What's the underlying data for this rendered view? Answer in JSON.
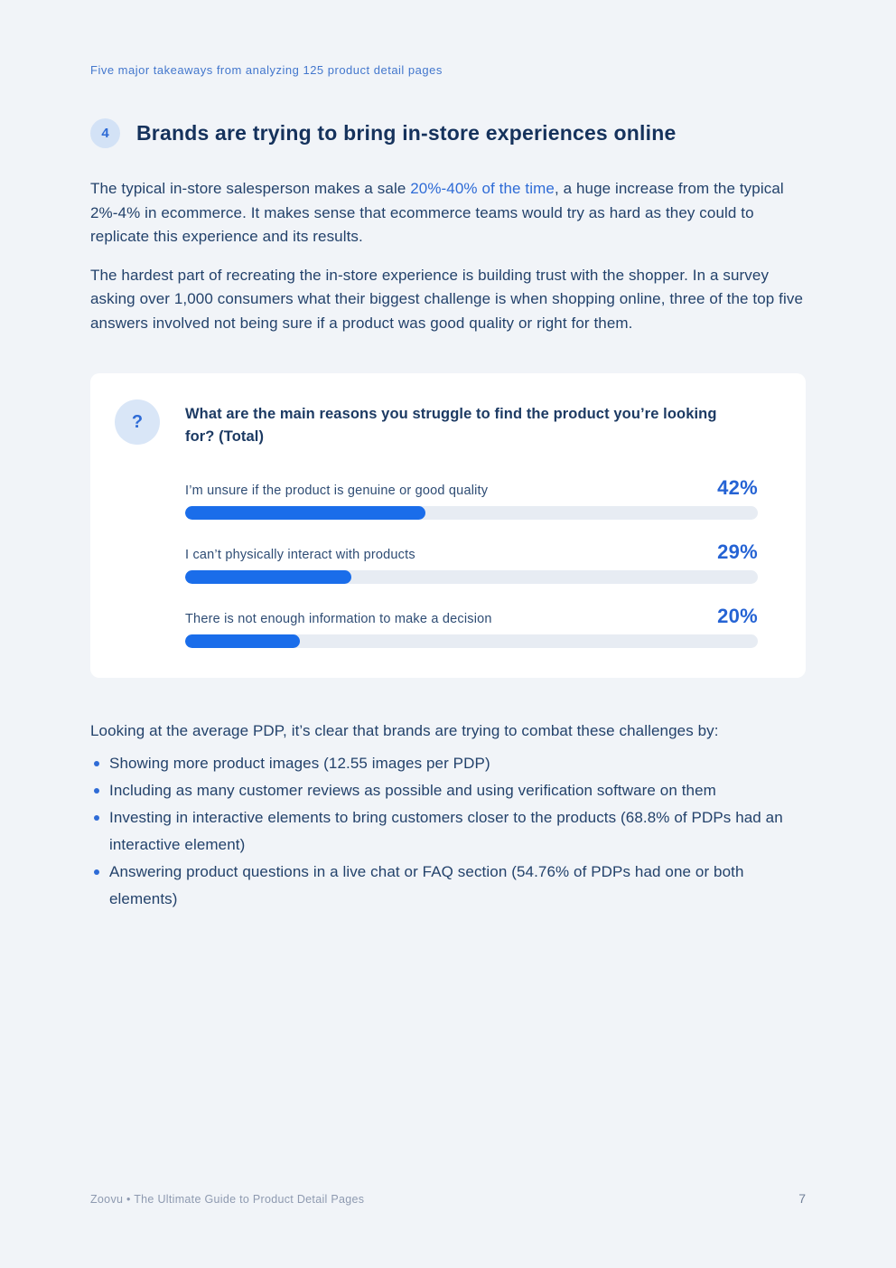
{
  "page": {
    "eyebrow": "Five major takeaways from analyzing 125 product detail pages",
    "section_number": "4",
    "heading": "Brands are trying to bring in-store experiences online",
    "paragraph_1": {
      "before_link": "The typical in-store salesperson makes a sale ",
      "highlight": "20%-40% of the time",
      "after_link": ", a huge increase from the typical 2%-4% in ecommerce. It makes sense that ecommerce teams would try as hard as they could to replicate this experience and its results."
    },
    "paragraph_2": "The hardest part of recreating the in-store experience is building trust with the shopper. In a survey asking over 1,000 consumers what their biggest challenge is when shopping online, three of the top five answers involved not being sure if a product was good quality or right for them.",
    "paragraph_3": "Looking at the average PDP, it’s clear that brands are trying to combat these challenges by:",
    "bullets": [
      "Showing more product images (12.55 images per PDP)",
      "Including as many customer reviews as possible and using verification software on them",
      "Investing in interactive elements to bring customers closer to the products (68.8% of PDPs had an interactive element)",
      "Answering product questions in a live chat or FAQ section (54.76% of PDPs had one or both elements)"
    ],
    "footer": {
      "left": "Zoovu • The Ultimate Guide to Product Detail Pages",
      "page_number": "7"
    }
  },
  "survey_card": {
    "icon_glyph": "?"
  },
  "chart_data": {
    "type": "bar",
    "orientation": "horizontal",
    "title": "What are the main reasons you struggle to find the product you’re looking for? (Total)",
    "categories": [
      "I’m unsure if the product is genuine or good quality",
      "I can’t physically interact with products",
      "There is not enough information to make a decision"
    ],
    "values": [
      42,
      29,
      20
    ],
    "value_labels": [
      "42%",
      "29%",
      "20%"
    ],
    "xlim": [
      0,
      100
    ],
    "grid": false,
    "legend": "none",
    "bar_color": "#1a6dea",
    "track_color": "#e7ecf3"
  },
  "colors": {
    "accent_blue": "#2e6bd6",
    "value_blue": "#2563d4",
    "text_navy": "#23426b",
    "heading_navy": "#15325c",
    "background": "#f1f4f8",
    "card_background": "#ffffff"
  }
}
